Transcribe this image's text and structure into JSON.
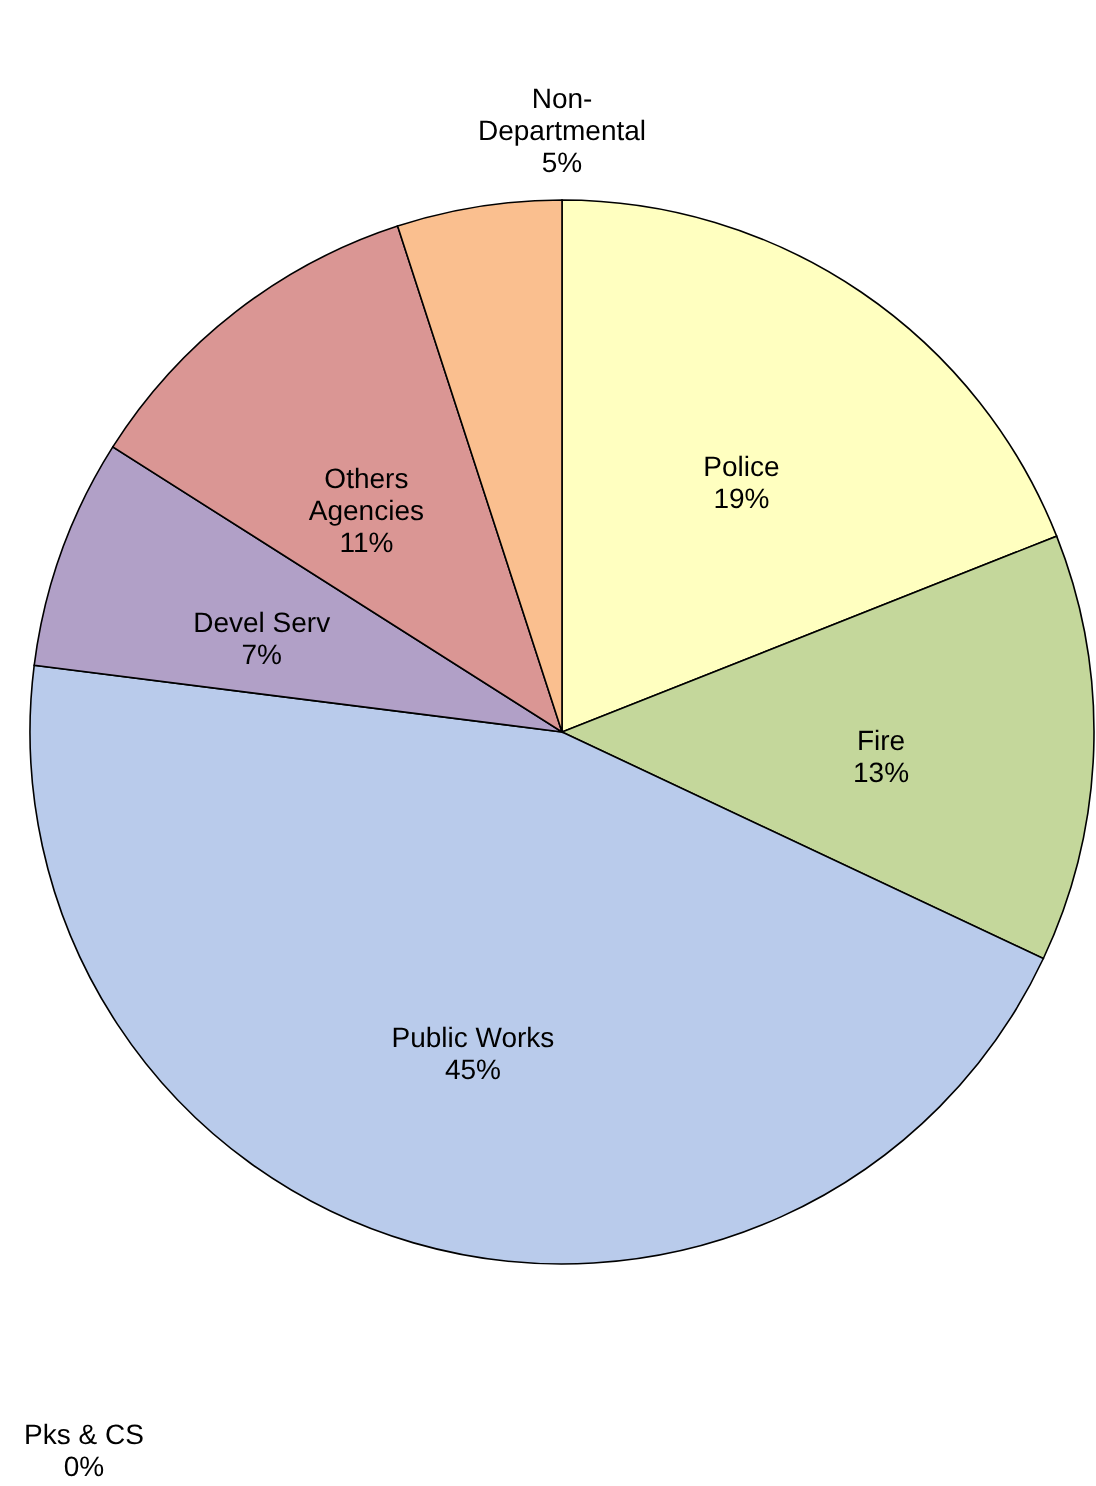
{
  "chart_data": {
    "type": "pie",
    "categories": [
      "Police",
      "Fire",
      "Public Works",
      "Pks & CS",
      "Devel Serv",
      "Others Agencies",
      "Non-Departmental"
    ],
    "values": [
      19,
      13,
      45,
      0,
      7,
      11,
      5
    ],
    "value_labels": [
      "19%",
      "13%",
      "45%",
      "0%",
      "7%",
      "11%",
      "5%"
    ],
    "colors": [
      "#ffffc0",
      "#c4d79b",
      "#b9cbeb",
      "#8db4e2",
      "#b1a0c7",
      "#da9694",
      "#fabf8f"
    ]
  }
}
